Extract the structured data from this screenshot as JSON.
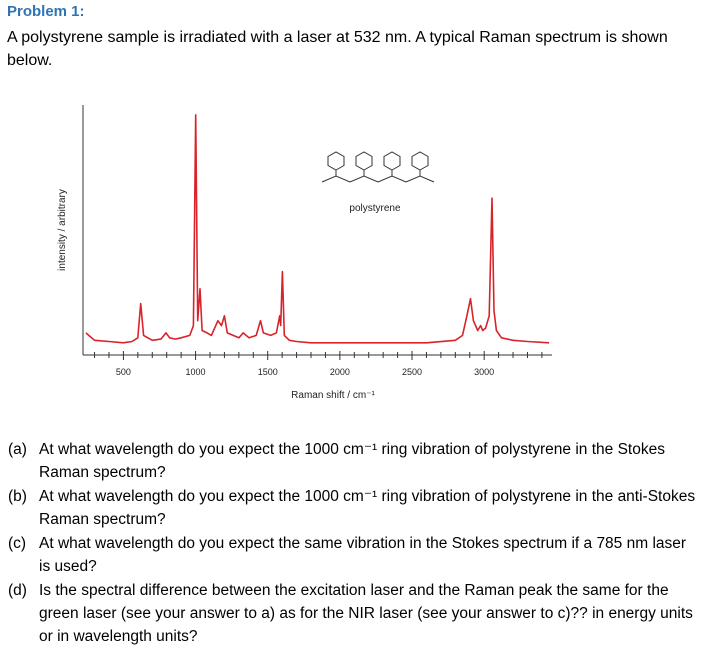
{
  "problem": {
    "heading": "Problem 1:",
    "intro": "A polystyrene sample is irradiated with a laser at 532 nm. A typical Raman spectrum is shown below."
  },
  "chart_data": {
    "type": "line",
    "xlabel": "Raman shift / cm⁻¹",
    "ylabel": "intensity / arbitrary",
    "annotation": "polystyrene",
    "x": [
      240,
      300,
      400,
      500,
      560,
      600,
      620,
      640,
      700,
      760,
      795,
      820,
      860,
      900,
      960,
      985,
      1001,
      1015,
      1031,
      1045,
      1080,
      1110,
      1155,
      1180,
      1200,
      1220,
      1260,
      1300,
      1330,
      1370,
      1420,
      1450,
      1470,
      1520,
      1560,
      1583,
      1590,
      1602,
      1615,
      1650,
      1700,
      1800,
      2000,
      2200,
      2400,
      2600,
      2800,
      2850,
      2880,
      2905,
      2925,
      2955,
      2975,
      2990,
      3010,
      3035,
      3054,
      3068,
      3085,
      3120,
      3200,
      3300,
      3450
    ],
    "series": [
      {
        "name": "polystyrene",
        "color": "#d9232a",
        "values": [
          9,
          6,
          5.5,
          5,
          5.5,
          7,
          21,
          8,
          6,
          6.5,
          9,
          7,
          6.5,
          7,
          8,
          12,
          98,
          14,
          27,
          10,
          9,
          8,
          14,
          12,
          16,
          9,
          8,
          7,
          9,
          7,
          8,
          14,
          9,
          8,
          9,
          16,
          12,
          34,
          8,
          6,
          5.5,
          5,
          5,
          5,
          5,
          5,
          6,
          8,
          16,
          23,
          14,
          10,
          12,
          10,
          11,
          16,
          64,
          18,
          10,
          7,
          6,
          5.5,
          5
        ]
      }
    ],
    "xlim": [
      220,
      3470
    ],
    "ylim": [
      0,
      100
    ],
    "xticks": [
      500,
      1000,
      1500,
      2000,
      2500,
      3000
    ],
    "xminorticks": [
      300,
      400,
      600,
      700,
      800,
      900,
      1100,
      1200,
      1300,
      1400,
      1600,
      1700,
      1800,
      1900,
      2100,
      2200,
      2300,
      2400,
      2600,
      2700,
      2800,
      2900,
      3100,
      3200,
      3300,
      3400
    ]
  },
  "questions": [
    {
      "label": "(a)",
      "text": "At what wavelength do you expect the 1000 cm⁻¹ ring vibration of polystyrene in the Stokes Raman spectrum?"
    },
    {
      "label": "(b)",
      "text": "At what wavelength do you expect the 1000 cm⁻¹ ring vibration of polystyrene in the anti-Stokes Raman spectrum?"
    },
    {
      "label": "(c)",
      "text": "At what wavelength do you expect the same vibration in the Stokes spectrum if a 785 nm laser is used?"
    },
    {
      "label": "(d)",
      "text": "Is the spectral difference between the excitation laser and the Raman peak the same for the green laser (see your answer to a) as for the NIR laser (see your answer to c)?? in energy units or in wavelength units?"
    }
  ]
}
